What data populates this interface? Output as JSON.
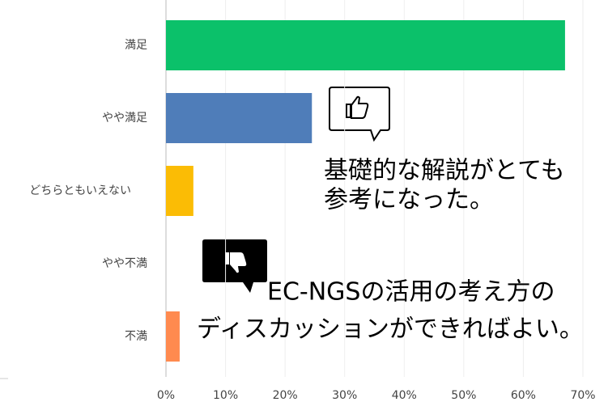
{
  "chart_data": {
    "type": "bar",
    "orientation": "horizontal",
    "categories": [
      "満足",
      "やや満足",
      "どちらともいえない",
      "やや不満",
      "不満"
    ],
    "values": [
      67,
      24.5,
      4.6,
      0,
      2.3
    ],
    "colors": [
      "#0bc16a",
      "#4f7db9",
      "#fbbc05",
      "#4f7db9",
      "#ff8a4f"
    ],
    "xlim": [
      0,
      70
    ],
    "xticks": [
      {
        "value": 0,
        "label": "0%"
      },
      {
        "value": 10,
        "label": "10%"
      },
      {
        "value": 20,
        "label": "20%"
      },
      {
        "value": 30,
        "label": "30%"
      },
      {
        "value": 40,
        "label": "40%"
      },
      {
        "value": 50,
        "label": "50%"
      },
      {
        "value": 60,
        "label": "60%"
      },
      {
        "value": 70,
        "label": "70%"
      }
    ],
    "grid": true,
    "annotations": [
      [
        "基礎的な解説がとても",
        "参考になった。"
      ],
      [
        "EC-NGSの活用の考え方の",
        "ディスカッションができればよい。"
      ]
    ]
  }
}
